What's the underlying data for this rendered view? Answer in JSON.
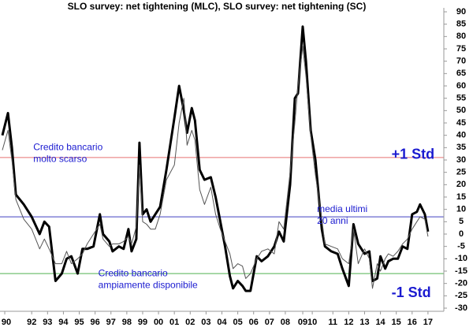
{
  "chart_data": {
    "type": "line",
    "title": "SLO survey: net tightening (MLC), SLO survey: net tightening (SC)",
    "x": [
      1989.65,
      1990.0,
      1990.25,
      1990.5,
      1991,
      1991.5,
      1992,
      1992.3,
      1992.6,
      1993,
      1993.4,
      1993.7,
      1994,
      1994.4,
      1994.7,
      1995,
      1995.4,
      1995.8,
      1996,
      1996.4,
      1996.6,
      1997,
      1997.3,
      1997.6,
      1997.8,
      1998.1,
      1998.3,
      1998.5,
      1998.75,
      1999,
      1999.3,
      1999.6,
      2000,
      2000.5,
      2000.8,
      2001.1,
      2001.3,
      2001.6,
      2001.8,
      2002.1,
      2002.4,
      2002.8,
      2003.1,
      2003.4,
      2003.7,
      2004,
      2004.2,
      2004.5,
      2004.8,
      2005,
      2005.3,
      2005.7,
      2006,
      2006.4,
      2006.8,
      2007.1,
      2007.4,
      2007.8,
      2008.1,
      2008.3,
      2008.6,
      2008.8,
      2009.1,
      2009.4,
      2009.8,
      2010,
      2010.4,
      2010.8,
      2011.1,
      2011.5,
      2011.8,
      2012.1,
      2012.5,
      2012.8,
      2013,
      2013.3,
      2013.5,
      2013.8,
      2014,
      2014.3,
      2014.6,
      2014.9,
      2015.2,
      2015.5,
      2015.8,
      2016,
      2016.3,
      2016.5
    ],
    "series": [
      {
        "color": "#000000",
        "width": 3,
        "values": [
          40,
          49,
          35,
          16,
          12,
          7,
          0,
          5,
          3,
          -19,
          -16,
          -10,
          -9,
          -16,
          -6,
          -6,
          -5,
          8,
          0,
          -3,
          -7,
          -5,
          -6,
          2,
          -7,
          -2,
          37,
          8,
          10,
          5,
          8,
          11,
          26,
          47,
          60,
          50,
          41,
          51,
          46,
          26,
          22,
          23,
          15,
          5,
          -5,
          -17,
          -22,
          -19,
          -21,
          -23,
          -23,
          -9,
          -11,
          -9,
          -5,
          1,
          -3,
          20,
          55,
          57,
          84,
          70,
          42,
          30,
          2,
          -5,
          -7,
          -8,
          -14,
          -21,
          4,
          -4,
          -8,
          -7,
          -19,
          -18,
          -9,
          -14,
          -11,
          -10,
          -10,
          -5,
          -6,
          8,
          9,
          12,
          8,
          1
        ]
      },
      {
        "color": "#555555",
        "width": 1,
        "values": [
          34,
          42,
          30,
          14,
          6,
          2,
          -6,
          -2,
          -6,
          -12,
          -12,
          -7,
          -12,
          -10,
          -8,
          -4,
          0,
          4,
          -2,
          -5,
          -4,
          -4,
          -3,
          -1,
          -4,
          3,
          28,
          5,
          4,
          2,
          2,
          8,
          22,
          28,
          45,
          55,
          36,
          42,
          38,
          18,
          12,
          19,
          8,
          2,
          -3,
          -8,
          -14,
          -12,
          -13,
          -18,
          -16,
          -10,
          -7,
          -6,
          -8,
          5,
          2,
          25,
          45,
          60,
          76,
          64,
          40,
          24,
          6,
          -4,
          -5,
          -6,
          -10,
          -12,
          2,
          -12,
          -6,
          -10,
          -22,
          -12,
          -15,
          -10,
          -8,
          -9,
          -7,
          -4,
          -2,
          2,
          5,
          7,
          6,
          -1
        ]
      }
    ],
    "xlim": [
      1989.5,
      2017.5
    ],
    "xticks": [
      {
        "value": 1989.8,
        "label": "90"
      },
      {
        "value": 1991.5,
        "label": "92"
      },
      {
        "value": 1992.5,
        "label": "93"
      },
      {
        "value": 1993.5,
        "label": "94"
      },
      {
        "value": 1994.5,
        "label": "95"
      },
      {
        "value": 1995.5,
        "label": "96"
      },
      {
        "value": 1996.5,
        "label": "97"
      },
      {
        "value": 1997.5,
        "label": "98"
      },
      {
        "value": 1998.5,
        "label": "99"
      },
      {
        "value": 1999.5,
        "label": "00"
      },
      {
        "value": 2000.5,
        "label": "01"
      },
      {
        "value": 2001.5,
        "label": "02"
      },
      {
        "value": 2002.5,
        "label": "03"
      },
      {
        "value": 2003.5,
        "label": "04"
      },
      {
        "value": 2004.5,
        "label": "05"
      },
      {
        "value": 2005.5,
        "label": "06"
      },
      {
        "value": 2006.5,
        "label": "07"
      },
      {
        "value": 2007.5,
        "label": "08"
      },
      {
        "value": 2008.6,
        "label": "09"
      },
      {
        "value": 2009.2,
        "label": "10"
      },
      {
        "value": 2010.5,
        "label": "11"
      },
      {
        "value": 2011.5,
        "label": "12"
      },
      {
        "value": 2012.5,
        "label": "13"
      },
      {
        "value": 2013.5,
        "label": "14"
      },
      {
        "value": 2014.5,
        "label": "15"
      },
      {
        "value": 2015.5,
        "label": "16"
      },
      {
        "value": 2016.5,
        "label": "17"
      }
    ],
    "ylim": [
      -30,
      90
    ],
    "yticks": [
      -30,
      -25,
      -20,
      -15,
      -10,
      -5,
      0,
      5,
      10,
      15,
      20,
      25,
      30,
      35,
      40,
      45,
      50,
      55,
      60,
      65,
      70,
      75,
      80,
      85,
      90
    ],
    "reference_lines": [
      {
        "value": 31,
        "color": "#e87070"
      },
      {
        "value": 7,
        "color": "#4040c0"
      },
      {
        "value": -16,
        "color": "#50b050"
      }
    ],
    "annotations": [
      {
        "lines": [
          "Credito bancario",
          "molto scarso"
        ],
        "x": 1991.6,
        "y": 35
      },
      {
        "lines": [
          "+1 Std"
        ],
        "x": 2014.2,
        "y": 32,
        "big": true
      },
      {
        "lines": [
          "media ultimi",
          "20 anni"
        ],
        "x": 2009.5,
        "y": 10
      },
      {
        "lines": [
          "Credito bancario",
          "ampiamente disponibile"
        ],
        "x": 1995.7,
        "y": -16
      },
      {
        "lines": [
          "-1 Std"
        ],
        "x": 2014.2,
        "y": -24,
        "big": true
      }
    ]
  }
}
